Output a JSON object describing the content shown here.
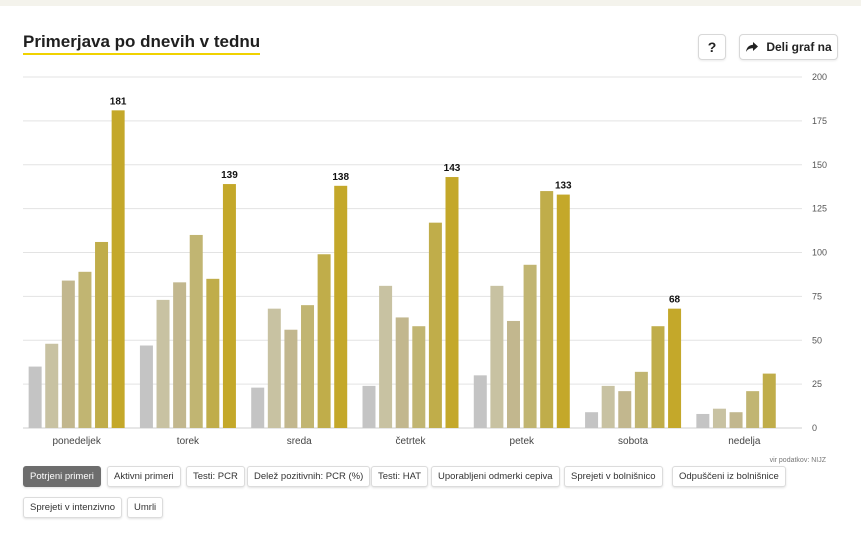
{
  "title": "Primerjava po dnevih v tednu",
  "buttons": {
    "help_label": "?",
    "share_label": "Deli graf na",
    "share_icon": "share-arrow-icon"
  },
  "source": "vir podatkov: NIJZ",
  "colors": {
    "gray": "#c4c4c4",
    "tan_light": "#c8c2a2",
    "tan": "#c2b78e",
    "tan_olive": "#c1b572",
    "olive": "#c0ad4a",
    "gold": "#c4a82a",
    "grid": "#e3e3e3",
    "accent_underline": "#f0d200",
    "active_chip": "#6d6d6d"
  },
  "filters": [
    {
      "label": "Potrjeni primeri",
      "active": true
    },
    {
      "label": "Aktivni primeri",
      "active": false
    },
    {
      "label": "Testi: PCR",
      "active": false
    },
    {
      "label": "Delež pozitivnih: PCR (%)",
      "active": false
    },
    {
      "label": "Testi: HAT",
      "active": false
    },
    {
      "label": "Uporabljeni odmerki cepiva",
      "active": false
    },
    {
      "label": "Sprejeti v bolnišnico",
      "active": false
    },
    {
      "label": "Odpuščeni iz bolnišnice",
      "active": false
    },
    {
      "label": "Sprejeti v intenzivno",
      "active": false
    },
    {
      "label": "Umrli",
      "active": false
    }
  ],
  "chart_data": {
    "type": "bar",
    "categories": [
      "ponedeljek",
      "torek",
      "sreda",
      "četrtek",
      "petek",
      "sobota",
      "nedelja"
    ],
    "series": [
      {
        "values": [
          35,
          47,
          23,
          24,
          30,
          9,
          8
        ]
      },
      {
        "values": [
          48,
          73,
          68,
          81,
          81,
          24,
          11
        ]
      },
      {
        "values": [
          84,
          83,
          56,
          63,
          61,
          21,
          9
        ]
      },
      {
        "values": [
          89,
          110,
          70,
          58,
          93,
          32,
          21
        ]
      },
      {
        "values": [
          106,
          85,
          99,
          117,
          135,
          58,
          31
        ]
      },
      {
        "values": [
          181,
          139,
          138,
          143,
          133,
          68,
          null
        ]
      }
    ],
    "data_labels": [
      "181",
      "139",
      "138",
      "143",
      "133",
      "68",
      ""
    ],
    "y_ticks": [
      0,
      25,
      50,
      75,
      100,
      125,
      150,
      175,
      200
    ],
    "ylim": [
      0,
      200
    ],
    "grid": true
  }
}
